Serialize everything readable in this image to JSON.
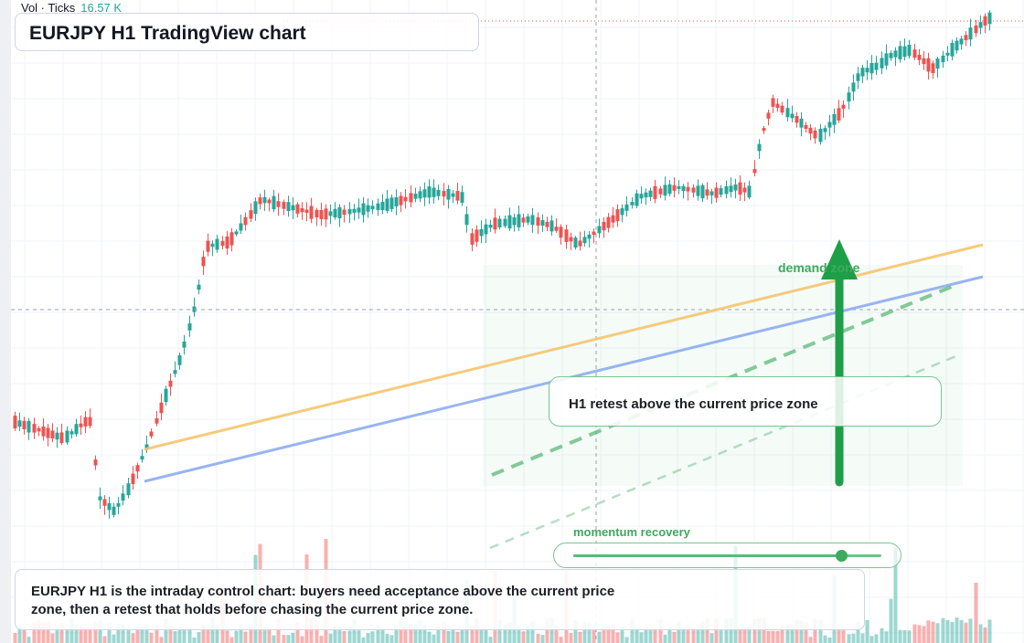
{
  "chart": {
    "title": "EURJPY H1 TradingView chart",
    "volume_label": "Vol · Ticks",
    "volume_value": "16.57 K",
    "zone_label": "demand zone",
    "callout": "H1 retest above the current price zone",
    "momentum_label": "momentum recovery",
    "momentum_level": 0.87,
    "summary": "EURJPY H1 is the intraday control chart: buyers need acceptance above the current price zone, then a retest that holds before chasing the current price zone."
  },
  "colors": {
    "bull": "#26a69a",
    "bear": "#ef5350",
    "accent_green": "#3caa5c",
    "trend_orange": "#f4c56e",
    "trend_blue": "#8eacee"
  }
}
